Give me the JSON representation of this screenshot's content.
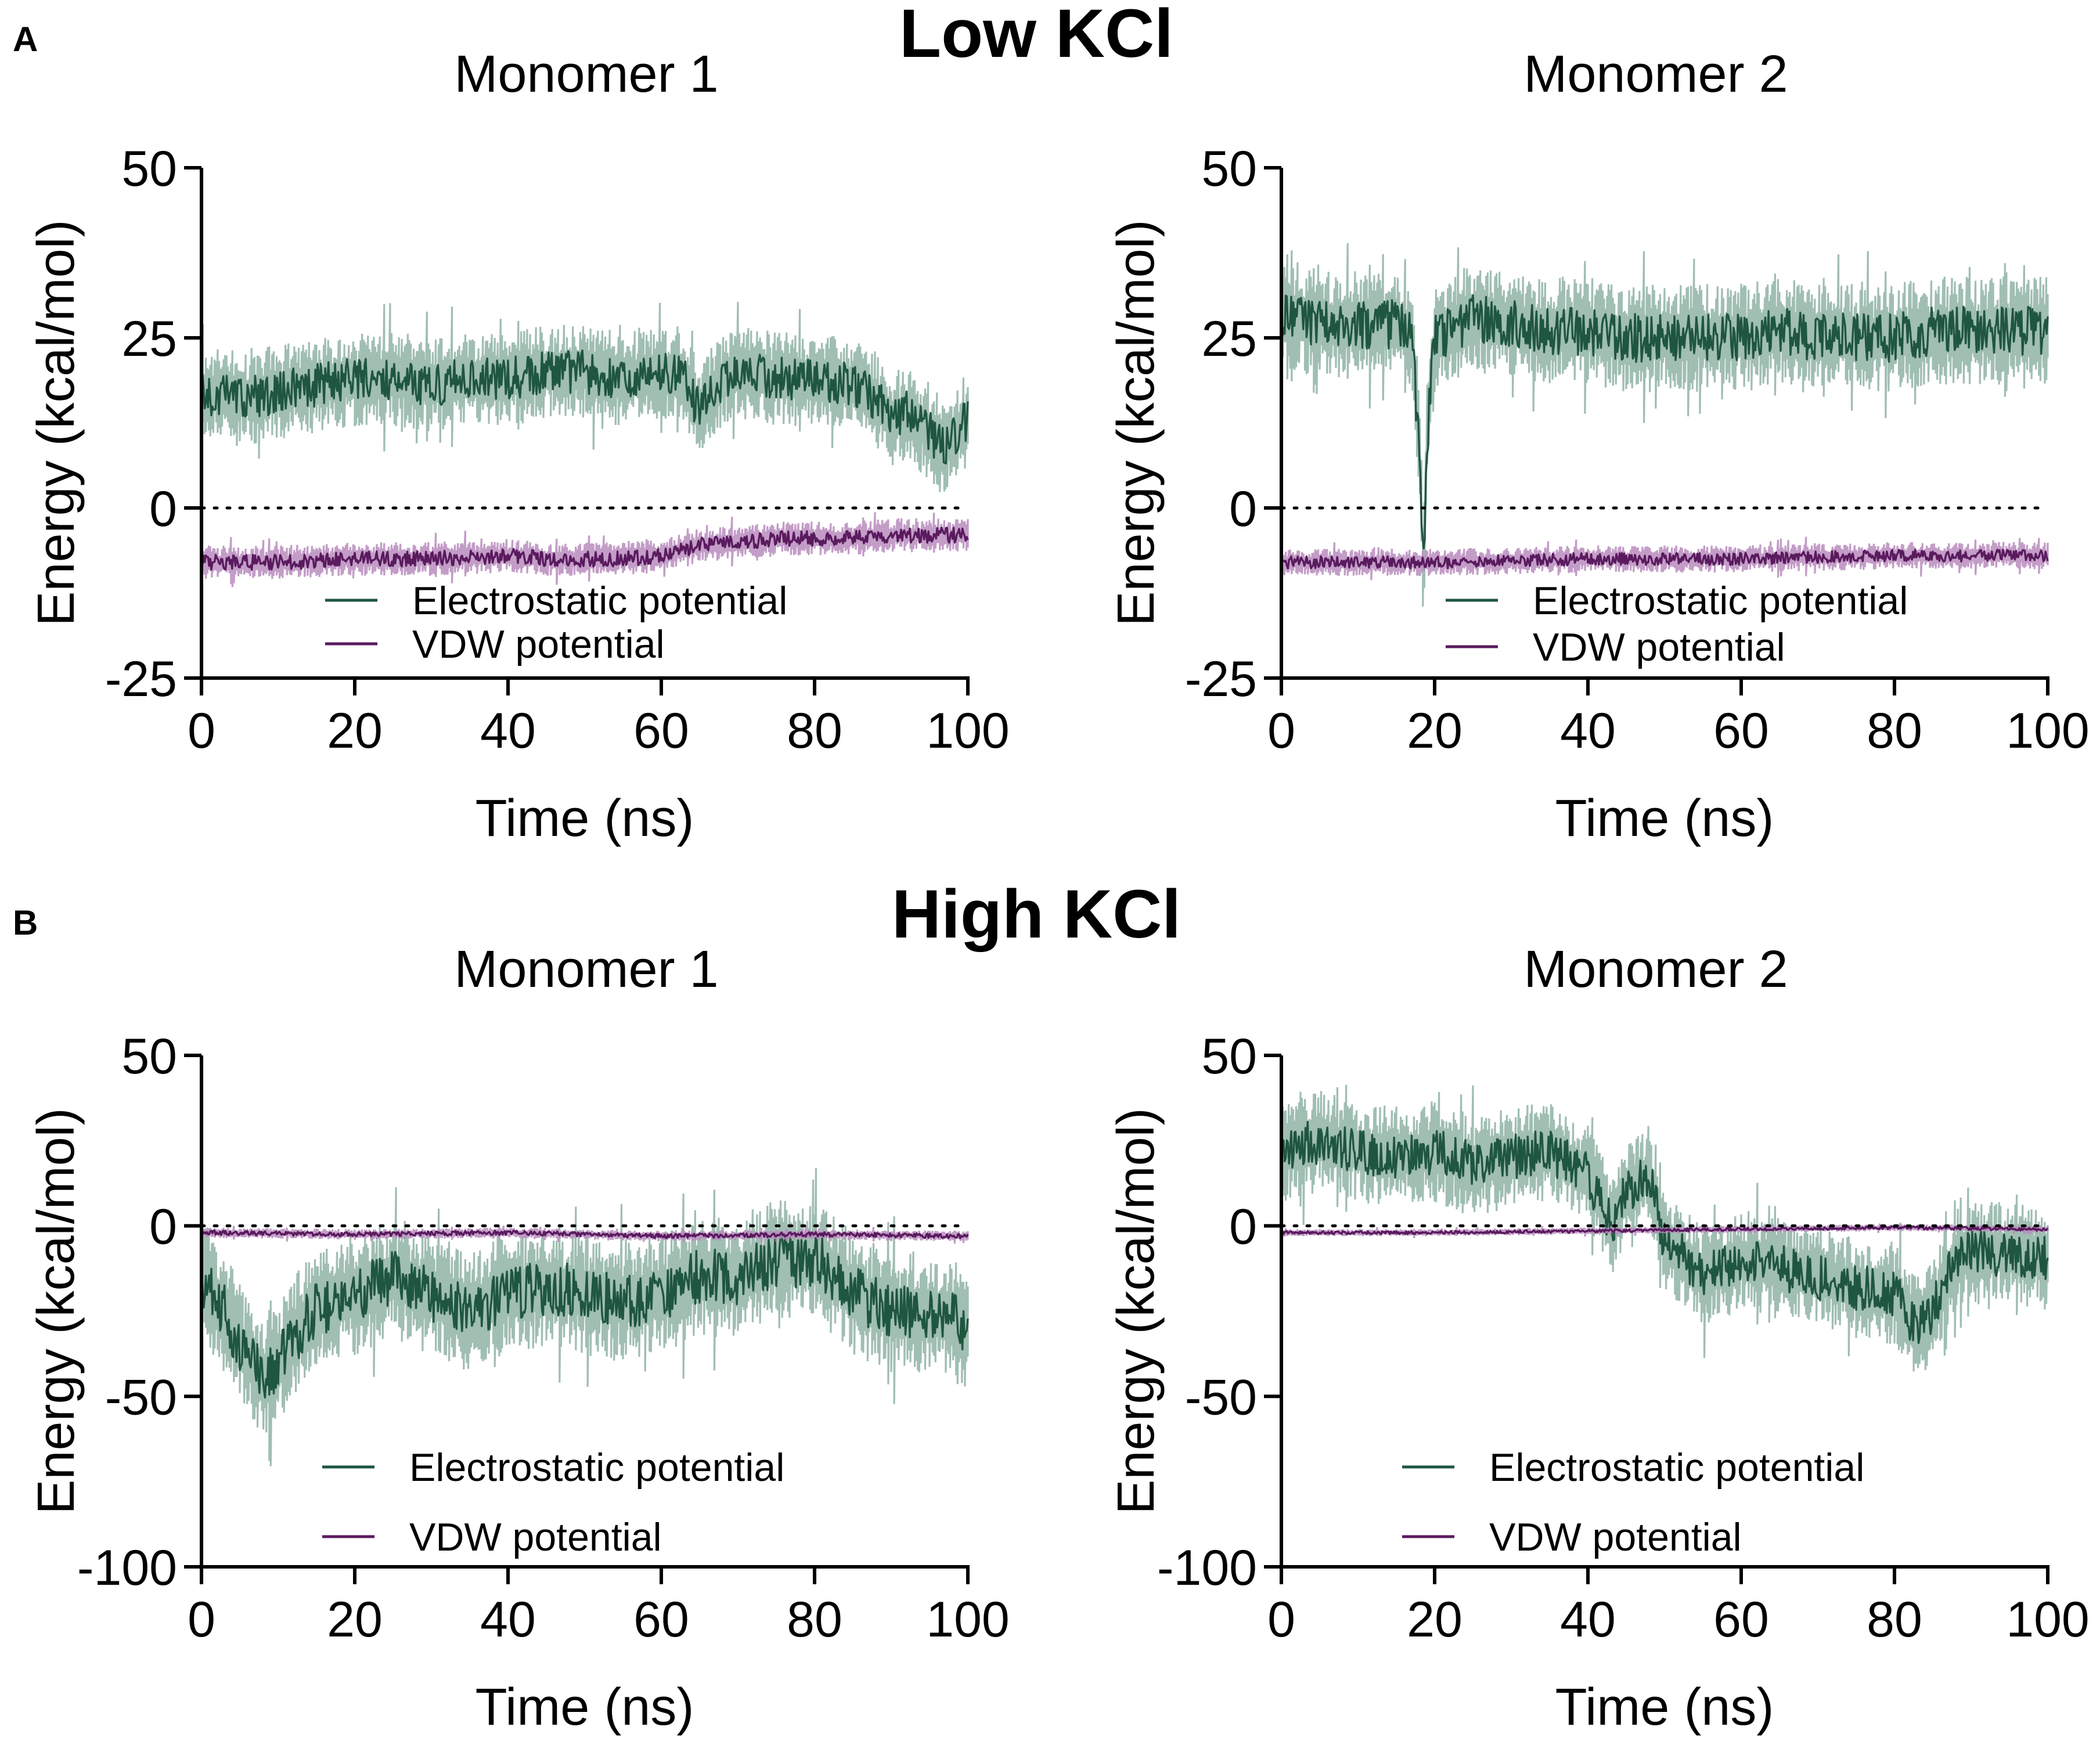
{
  "figure": {
    "panels": [
      {
        "letter": "A",
        "title": "Low KCl"
      },
      {
        "letter": "B",
        "title": "High KCl"
      }
    ]
  },
  "colors": {
    "electrostatic": "#1f5640",
    "electrostatic_band": "#8fb3a4",
    "vdw": "#5a1a5e",
    "vdw_band": "#b98cbd"
  },
  "chart_data": [
    {
      "type": "line",
      "panel": "A",
      "title": "Monomer 1",
      "xlabel": "Time (ns)",
      "ylabel": "Energy (kcal/mol)",
      "xlim": [
        0,
        100
      ],
      "ylim": [
        -25,
        50
      ],
      "xticks": [
        0,
        20,
        40,
        60,
        80,
        100
      ],
      "yticks": [
        -25,
        0,
        25,
        50
      ],
      "reference_line": 0,
      "legend": [
        "Electrostatic potential",
        "VDW potential"
      ],
      "series": [
        {
          "name": "Electrostatic potential",
          "x": [
            0,
            5,
            10,
            15,
            20,
            25,
            30,
            35,
            40,
            45,
            50,
            55,
            60,
            63,
            65,
            68,
            70,
            75,
            80,
            85,
            88,
            90,
            92,
            95,
            97,
            100
          ],
          "values": [
            17,
            16,
            17,
            18,
            19,
            19,
            18,
            19,
            19,
            20,
            20,
            19,
            20,
            19,
            14,
            19,
            20,
            19,
            19,
            18,
            16,
            13,
            14,
            11,
            9,
            13
          ],
          "spread": 7
        },
        {
          "name": "VDW potential",
          "x": [
            0,
            10,
            20,
            30,
            40,
            45,
            50,
            55,
            60,
            65,
            70,
            75,
            80,
            85,
            90,
            95,
            100
          ],
          "values": [
            -8,
            -8,
            -7.5,
            -7.5,
            -7,
            -7.5,
            -7.5,
            -7.5,
            -7,
            -5.5,
            -5,
            -4.5,
            -4.5,
            -4.5,
            -4,
            -4,
            -4
          ],
          "spread": 2.5
        }
      ]
    },
    {
      "type": "line",
      "panel": "A",
      "title": "Monomer 2",
      "xlabel": "Time (ns)",
      "ylabel": "Energy (kcal/mol)",
      "xlim": [
        0,
        100
      ],
      "ylim": [
        -25,
        50
      ],
      "xticks": [
        0,
        20,
        40,
        60,
        80,
        100
      ],
      "yticks": [
        -25,
        0,
        25,
        50
      ],
      "reference_line": 0,
      "legend": [
        "Electrostatic potential",
        "VDW potential"
      ],
      "series": [
        {
          "name": "Electrostatic potential",
          "x": [
            0,
            5,
            10,
            15,
            17,
            18,
            18.5,
            19,
            20,
            25,
            30,
            35,
            40,
            45,
            50,
            55,
            60,
            65,
            70,
            75,
            80,
            85,
            90,
            95,
            100
          ],
          "values": [
            28,
            27,
            27,
            27,
            25,
            10,
            -10,
            10,
            25,
            28,
            27,
            26,
            26,
            25,
            25,
            25,
            25,
            26,
            25,
            25,
            25,
            26,
            26,
            26,
            26
          ],
          "spread": 8
        },
        {
          "name": "VDW potential",
          "x": [
            0,
            20,
            40,
            60,
            80,
            100
          ],
          "values": [
            -8,
            -8,
            -7.5,
            -7.5,
            -7,
            -7
          ],
          "spread": 2
        }
      ]
    },
    {
      "type": "line",
      "panel": "B",
      "title": "Monomer 1",
      "xlabel": "Time (ns)",
      "ylabel": "Energy (kcal/mol)",
      "xlim": [
        0,
        100
      ],
      "ylim": [
        -100,
        50
      ],
      "xticks": [
        0,
        20,
        40,
        60,
        80,
        100
      ],
      "yticks": [
        -100,
        -50,
        0,
        50
      ],
      "reference_line": 0,
      "legend": [
        "Electrostatic potential",
        "VDW potential"
      ],
      "series": [
        {
          "name": "Electrostatic potential",
          "x": [
            0,
            3,
            5,
            8,
            10,
            13,
            15,
            20,
            25,
            30,
            35,
            40,
            45,
            50,
            55,
            60,
            65,
            70,
            75,
            80,
            83,
            85,
            90,
            95,
            100
          ],
          "values": [
            -15,
            -25,
            -35,
            -45,
            -40,
            -30,
            -25,
            -20,
            -15,
            -20,
            -25,
            -20,
            -18,
            -20,
            -22,
            -20,
            -15,
            -15,
            -10,
            -10,
            -15,
            -20,
            -25,
            -25,
            -30
          ],
          "spread": 18
        },
        {
          "name": "VDW potential",
          "x": [
            0,
            20,
            40,
            60,
            80,
            100
          ],
          "values": [
            -2,
            -2.5,
            -2,
            -3,
            -2.5,
            -3
          ],
          "spread": 1.5
        }
      ]
    },
    {
      "type": "line",
      "panel": "B",
      "title": "Monomer 2",
      "xlabel": "Time (ns)",
      "ylabel": "Energy (kcal/mol)",
      "xlim": [
        0,
        100
      ],
      "ylim": [
        -100,
        50
      ],
      "xticks": [
        0,
        20,
        40,
        60,
        80,
        100
      ],
      "yticks": [
        -100,
        -50,
        0,
        50
      ],
      "reference_line": 0,
      "legend": [
        "Electrostatic potential",
        "VDW potential"
      ],
      "series": [
        {
          "name": "Electrostatic potential",
          "x": [
            0,
            5,
            10,
            15,
            20,
            25,
            30,
            35,
            40,
            43,
            45,
            48,
            50,
            53,
            55,
            60,
            65,
            70,
            75,
            80,
            83,
            85,
            88,
            90,
            95,
            100
          ],
          "values": [
            22,
            25,
            22,
            20,
            22,
            18,
            20,
            22,
            15,
            0,
            10,
            15,
            -5,
            -10,
            -15,
            -10,
            -12,
            -15,
            -18,
            -20,
            -30,
            -25,
            -10,
            -8,
            -8,
            -10
          ],
          "spread": 15
        },
        {
          "name": "VDW potential",
          "x": [
            0,
            20,
            40,
            60,
            80,
            100
          ],
          "values": [
            -2,
            -2,
            -1.5,
            -1,
            -0.5,
            -1
          ],
          "spread": 1
        }
      ]
    }
  ]
}
